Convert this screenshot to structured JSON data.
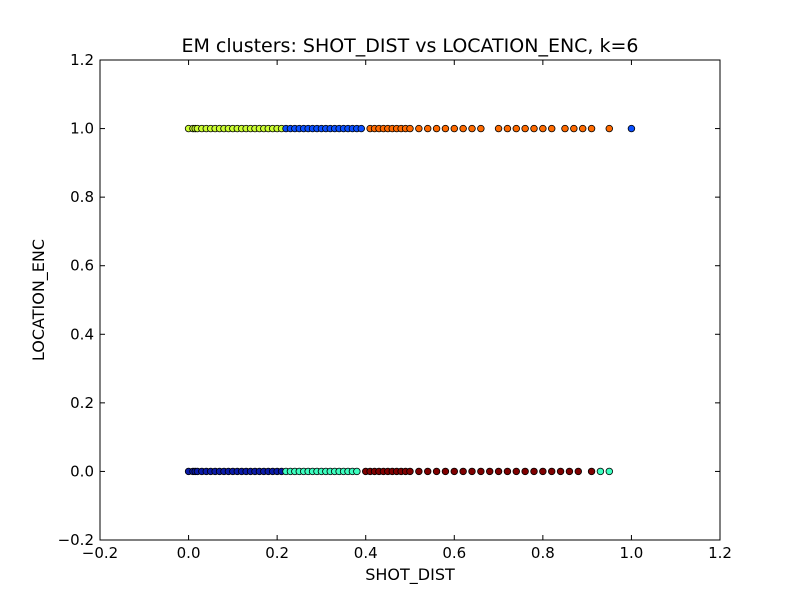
{
  "chart_data": {
    "type": "scatter",
    "title": "EM clusters: SHOT_DIST vs LOCATION_ENC, k=6",
    "xlabel": "SHOT_DIST",
    "ylabel": "LOCATION_ENC",
    "xlim": [
      -0.2,
      1.2
    ],
    "ylim": [
      -0.2,
      1.2
    ],
    "xticks": [
      "−0.2",
      "0.0",
      "0.2",
      "0.4",
      "0.6",
      "0.8",
      "1.0",
      "1.2"
    ],
    "xtick_values": [
      -0.2,
      0.0,
      0.2,
      0.4,
      0.6,
      0.8,
      1.0,
      1.2
    ],
    "yticks": [
      "−0.2",
      "0.0",
      "0.2",
      "0.4",
      "0.6",
      "0.8",
      "1.0",
      "1.2"
    ],
    "ytick_values": [
      -0.2,
      0.0,
      0.2,
      0.4,
      0.6,
      0.8,
      1.0,
      1.2
    ],
    "grid": false,
    "series": [
      {
        "color": "#ccff33",
        "y": 1.0,
        "x": [
          0.0,
          0.01,
          0.015,
          0.02,
          0.03,
          0.04,
          0.05,
          0.06,
          0.07,
          0.08,
          0.09,
          0.1,
          0.11,
          0.12,
          0.13,
          0.14,
          0.15,
          0.16,
          0.17,
          0.18,
          0.19,
          0.2,
          0.21
        ]
      },
      {
        "color": "#0a4fff",
        "y": 1.0,
        "x": [
          0.22,
          0.23,
          0.24,
          0.25,
          0.26,
          0.27,
          0.28,
          0.29,
          0.3,
          0.31,
          0.32,
          0.33,
          0.34,
          0.35,
          0.36,
          0.37,
          0.38,
          0.39,
          1.0
        ]
      },
      {
        "color": "#ff6a00",
        "y": 1.0,
        "x": [
          0.41,
          0.42,
          0.43,
          0.44,
          0.45,
          0.46,
          0.47,
          0.48,
          0.49,
          0.5,
          0.52,
          0.54,
          0.56,
          0.58,
          0.6,
          0.62,
          0.64,
          0.66,
          0.7,
          0.72,
          0.74,
          0.76,
          0.78,
          0.8,
          0.82,
          0.85,
          0.87,
          0.89,
          0.91,
          0.95
        ]
      },
      {
        "color": "#0a1aa8",
        "y": 0.0,
        "x": [
          0.0,
          0.01,
          0.015,
          0.02,
          0.03,
          0.04,
          0.05,
          0.06,
          0.07,
          0.08,
          0.09,
          0.1,
          0.11,
          0.12,
          0.13,
          0.14,
          0.15,
          0.16,
          0.17,
          0.18,
          0.19,
          0.2,
          0.21
        ]
      },
      {
        "color": "#3dffc0",
        "y": 0.0,
        "x": [
          0.22,
          0.23,
          0.24,
          0.25,
          0.26,
          0.27,
          0.28,
          0.29,
          0.3,
          0.31,
          0.32,
          0.33,
          0.34,
          0.35,
          0.36,
          0.37,
          0.38,
          0.93,
          0.95
        ]
      },
      {
        "color": "#7f0000",
        "y": 0.0,
        "x": [
          0.4,
          0.41,
          0.42,
          0.43,
          0.44,
          0.45,
          0.46,
          0.47,
          0.48,
          0.49,
          0.5,
          0.52,
          0.54,
          0.56,
          0.58,
          0.6,
          0.62,
          0.64,
          0.66,
          0.68,
          0.7,
          0.72,
          0.74,
          0.76,
          0.78,
          0.8,
          0.82,
          0.84,
          0.86,
          0.88,
          0.91
        ]
      }
    ]
  }
}
